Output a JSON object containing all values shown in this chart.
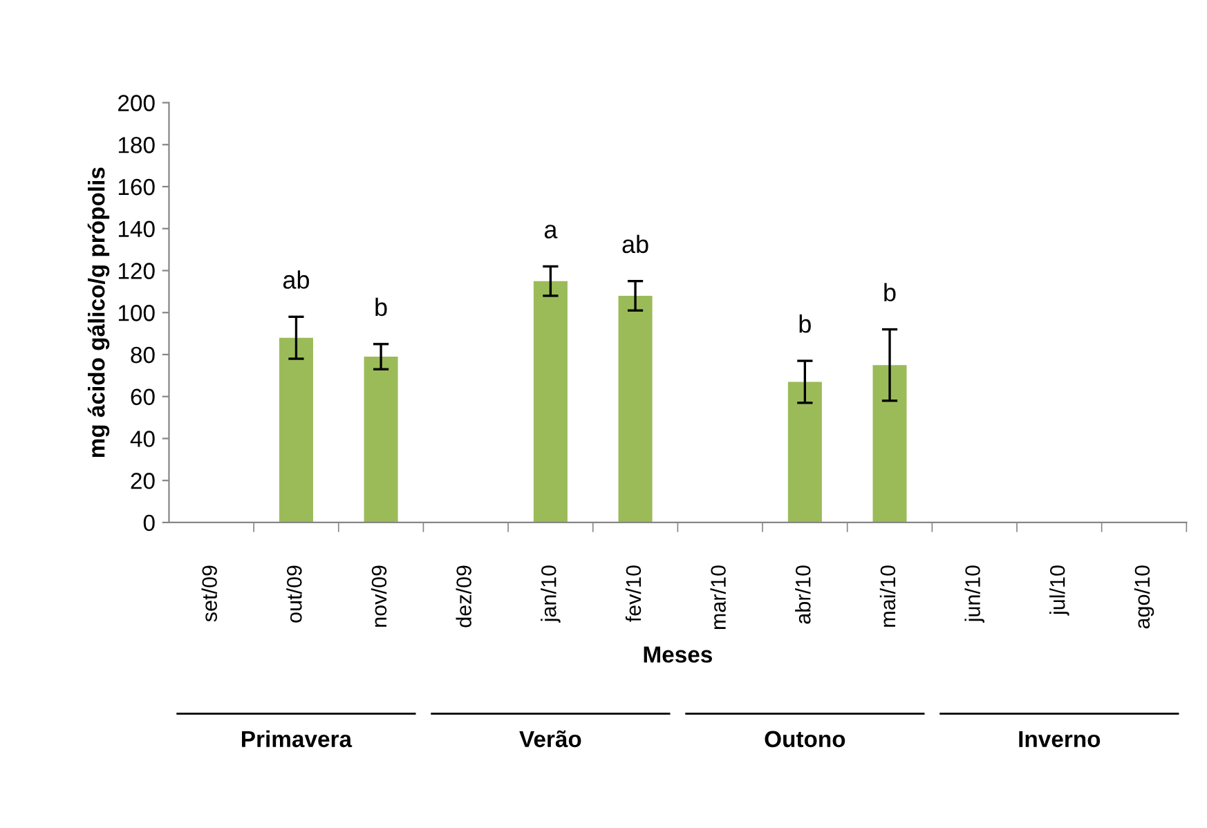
{
  "chart_data": {
    "type": "bar",
    "xlabel": "Meses",
    "ylabel": "mg ácido gálico/g própolis",
    "categories": [
      "set/09",
      "out/09",
      "nov/09",
      "dez/09",
      "jan/10",
      "fev/10",
      "mar/10",
      "abr/10",
      "mai/10",
      "jun/10",
      "jul/10",
      "ago/10"
    ],
    "values": [
      null,
      88,
      79,
      null,
      115,
      108,
      null,
      67,
      75,
      null,
      null,
      null
    ],
    "errors": [
      null,
      10,
      6,
      null,
      7,
      7,
      null,
      10,
      17,
      null,
      null,
      null
    ],
    "color": "#9bbb59",
    "ylim": [
      0,
      200
    ],
    "yticks": [
      0,
      20,
      40,
      60,
      80,
      100,
      120,
      140,
      160,
      180,
      200
    ],
    "grid": false,
    "legend": false,
    "annotations": [
      {
        "text": "ab",
        "x": "out/09",
        "y": 98
      },
      {
        "text": "b",
        "x": "nov/09",
        "y": 85
      },
      {
        "text": "a",
        "x": "jan/10",
        "y": 122
      },
      {
        "text": "ab",
        "x": "fev/10",
        "y": 115
      },
      {
        "text": "b",
        "x": "abr/10",
        "y": 77
      },
      {
        "text": "b",
        "x": "mai/10",
        "y": 92
      },
      "Primavera",
      "Verão",
      "Outono",
      "Inverno"
    ]
  }
}
